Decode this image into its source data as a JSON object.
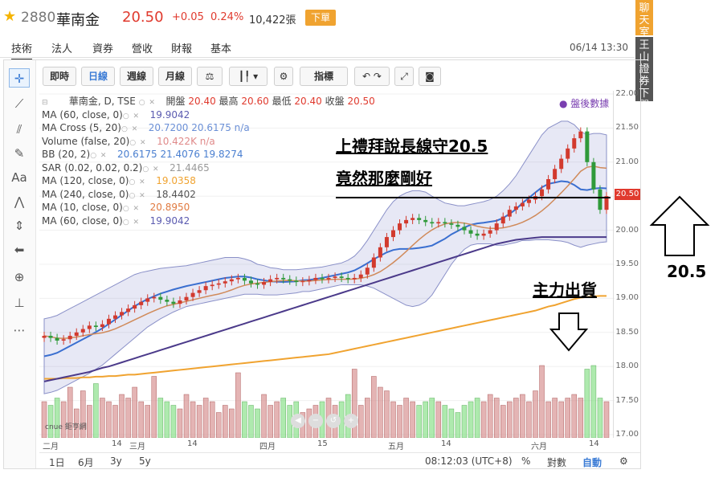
{
  "header": {
    "code": "2880",
    "name": "華南金",
    "price": "20.50",
    "change": "+0.05",
    "change_pct": "0.24%",
    "volume": "10,422張",
    "sell_button": "下單"
  },
  "tabs": [
    {
      "label": "技術",
      "active": true
    },
    {
      "label": "法人"
    },
    {
      "label": "資券"
    },
    {
      "label": "營收"
    },
    {
      "label": "財報"
    },
    {
      "label": "基本"
    }
  ],
  "datetime": "06/14 13:30",
  "side_chat": "聊天室",
  "side_broker": "王山證券下單",
  "toolbar": {
    "buttons": [
      "即時",
      "日線",
      "週線",
      "月線"
    ],
    "indicator": "指標",
    "active": "日線"
  },
  "legend": {
    "title": "華南金, D, TSE",
    "open_label": "開盤",
    "open": "20.40",
    "high_label": "最高",
    "high": "20.60",
    "low_label": "最低",
    "low": "20.40",
    "close_label": "收盤",
    "close": "20.50",
    "after_hours": "盤後數據",
    "rows": [
      {
        "name": "MA (60, close, 0)",
        "value": "19.9042",
        "color": "#5b5bb0"
      },
      {
        "name": "MA Cross (5, 20)",
        "value": "20.7200  20.6175  n/a",
        "color": "#6a8fd6"
      },
      {
        "name": "Volume (false, 20)",
        "value": "10.422K  n/a",
        "color": "#e08a8a"
      },
      {
        "name": "BB (20, 2)",
        "value": "20.6175  21.4076  19.8274",
        "color": "#4a7fd0"
      },
      {
        "name": "SAR (0.02, 0.02, 0.2)",
        "value": "21.4465",
        "color": "#999999"
      },
      {
        "name": "MA (120, close, 0)",
        "value": "19.0358",
        "color": "#f0a330"
      },
      {
        "name": "MA (240, close, 0)",
        "value": "18.4402",
        "color": "#555555"
      },
      {
        "name": "MA (10, close, 0)",
        "value": "20.8950",
        "color": "#e07a40"
      },
      {
        "name": "MA (60, close, 0)",
        "value": "19.9042",
        "color": "#5b5bb0"
      }
    ]
  },
  "annotations": {
    "line1": "上禮拜說長線守20.5",
    "line2": "竟然那麼剛好",
    "main_force": "主力出貨",
    "support": "20.5"
  },
  "price_tag": "20.50",
  "logo_text": "cnue 鉅亨網",
  "bottom": {
    "ranges": [
      "1日",
      "6月",
      "3y",
      "5y"
    ],
    "clock": "08:12:03 (UTC+8)",
    "pct": "%",
    "log": "對數",
    "auto": "自動"
  },
  "chart_data": {
    "type": "candlestick",
    "ylim": [
      17.0,
      22.0
    ],
    "y_ticks": [
      "22.00",
      "21.50",
      "21.00",
      "20.50",
      "20.00",
      "19.50",
      "19.00",
      "18.50",
      "18.00",
      "17.50",
      "17.00"
    ],
    "x_ticks": [
      "二月",
      "14",
      "三月",
      "14",
      "四月",
      "15",
      "五月",
      "14",
      "六月",
      "14"
    ],
    "close_series": [
      18.45,
      18.42,
      18.38,
      18.4,
      18.45,
      18.5,
      18.55,
      18.6,
      18.58,
      18.62,
      18.7,
      18.75,
      18.8,
      18.85,
      18.9,
      18.95,
      19.0,
      19.02,
      18.98,
      18.95,
      18.92,
      18.97,
      19.02,
      19.08,
      19.12,
      19.18,
      19.2,
      19.22,
      19.25,
      19.28,
      19.3,
      19.26,
      19.22,
      19.2,
      19.24,
      19.28,
      19.3,
      19.28,
      19.26,
      19.24,
      19.25,
      19.27,
      19.3,
      19.28,
      19.3,
      19.32,
      19.3,
      19.28,
      19.3,
      19.35,
      19.45,
      19.6,
      19.75,
      19.9,
      20.0,
      20.1,
      20.15,
      20.18,
      20.15,
      20.12,
      20.1,
      20.12,
      20.1,
      20.08,
      20.05,
      20.0,
      19.95,
      19.92,
      19.95,
      20.0,
      20.1,
      20.2,
      20.3,
      20.35,
      20.4,
      20.45,
      20.5,
      20.6,
      20.75,
      20.9,
      21.05,
      21.2,
      21.35,
      21.45,
      21.0,
      20.6,
      20.3,
      20.5
    ],
    "bb_upper": [
      18.7,
      18.72,
      18.75,
      18.8,
      18.85,
      18.9,
      18.95,
      19.0,
      19.05,
      19.1,
      19.15,
      19.2,
      19.25,
      19.3,
      19.35,
      19.38,
      19.4,
      19.42,
      19.44,
      19.45,
      19.46,
      19.47,
      19.48,
      19.5,
      19.52,
      19.54,
      19.56,
      19.58,
      19.6,
      19.6,
      19.6,
      19.58,
      19.55,
      19.5,
      19.48,
      19.45,
      19.44,
      19.42,
      19.42,
      19.42,
      19.43,
      19.44,
      19.45,
      19.46,
      19.48,
      19.5,
      19.52,
      19.56,
      19.62,
      19.72,
      19.85,
      20.0,
      20.15,
      20.3,
      20.42,
      20.5,
      20.55,
      20.58,
      20.58,
      20.56,
      20.5,
      20.45,
      20.4,
      20.38,
      20.36,
      20.36,
      20.38,
      20.4,
      20.42,
      20.45,
      20.5,
      20.58,
      20.68,
      20.8,
      20.95,
      21.1,
      21.25,
      21.4,
      21.5,
      21.55,
      21.6,
      21.6,
      21.55,
      21.45,
      21.4,
      21.42,
      21.42,
      21.4
    ],
    "bb_lower": [
      17.6,
      17.62,
      17.65,
      17.7,
      17.75,
      17.8,
      17.85,
      17.9,
      17.96,
      18.02,
      18.1,
      18.18,
      18.26,
      18.34,
      18.42,
      18.5,
      18.58,
      18.64,
      18.7,
      18.75,
      18.8,
      18.84,
      18.88,
      18.9,
      18.92,
      18.94,
      18.96,
      18.98,
      19.0,
      19.02,
      19.04,
      19.06,
      19.06,
      19.06,
      19.05,
      19.05,
      19.05,
      19.06,
      19.07,
      19.08,
      19.1,
      19.1,
      19.12,
      19.14,
      19.16,
      19.18,
      19.2,
      19.2,
      19.2,
      19.2,
      19.18,
      19.15,
      19.1,
      19.05,
      19.0,
      18.95,
      18.9,
      18.88,
      18.9,
      18.95,
      19.05,
      19.2,
      19.35,
      19.5,
      19.62,
      19.72,
      19.78,
      19.8,
      19.8,
      19.8,
      19.78,
      19.78,
      19.8,
      19.82,
      19.85,
      19.85,
      19.86,
      19.86,
      19.86,
      19.85,
      19.84,
      19.82,
      19.78,
      19.75,
      19.78,
      19.8,
      19.82,
      19.83
    ],
    "ma60_series": [
      17.78,
      17.8,
      17.82,
      17.84,
      17.86,
      17.88,
      17.9,
      17.92,
      17.95,
      17.98,
      18.0,
      18.03,
      18.06,
      18.09,
      18.12,
      18.15,
      18.18,
      18.21,
      18.24,
      18.27,
      18.3,
      18.33,
      18.36,
      18.39,
      18.42,
      18.45,
      18.48,
      18.51,
      18.54,
      18.57,
      18.6,
      18.63,
      18.66,
      18.69,
      18.72,
      18.75,
      18.78,
      18.81,
      18.84,
      18.87,
      18.9,
      18.93,
      18.96,
      18.99,
      19.02,
      19.05,
      19.08,
      19.11,
      19.14,
      19.17,
      19.2,
      19.23,
      19.26,
      19.29,
      19.32,
      19.35,
      19.38,
      19.41,
      19.44,
      19.47,
      19.5,
      19.53,
      19.56,
      19.59,
      19.62,
      19.65,
      19.68,
      19.71,
      19.74,
      19.77,
      19.8,
      19.82,
      19.84,
      19.86,
      19.87,
      19.88,
      19.89,
      19.9,
      19.9,
      19.9,
      19.9,
      19.9,
      19.9,
      19.9,
      19.9,
      19.9,
      19.9,
      19.9
    ],
    "ma120_series": [
      17.82,
      17.82,
      17.82,
      17.83,
      17.83,
      17.83,
      17.84,
      17.84,
      17.85,
      17.85,
      17.86,
      17.86,
      17.87,
      17.88,
      17.88,
      17.89,
      17.9,
      17.91,
      17.92,
      17.93,
      17.94,
      17.95,
      17.96,
      17.97,
      17.98,
      17.99,
      18.0,
      18.01,
      18.02,
      18.03,
      18.04,
      18.05,
      18.06,
      18.07,
      18.08,
      18.09,
      18.1,
      18.11,
      18.12,
      18.13,
      18.14,
      18.15,
      18.16,
      18.17,
      18.18,
      18.2,
      18.22,
      18.24,
      18.26,
      18.28,
      18.3,
      18.32,
      18.34,
      18.36,
      18.38,
      18.4,
      18.42,
      18.44,
      18.46,
      18.48,
      18.5,
      18.52,
      18.54,
      18.56,
      18.58,
      18.6,
      18.62,
      18.64,
      18.66,
      18.68,
      18.7,
      18.72,
      18.74,
      18.76,
      18.78,
      18.8,
      18.82,
      18.85,
      18.88,
      18.9,
      18.93,
      18.96,
      18.99,
      19.01,
      19.02,
      19.03,
      19.035,
      19.036
    ],
    "volume_relative": [
      0.5,
      0.45,
      0.55,
      0.5,
      0.7,
      0.4,
      0.65,
      0.45,
      0.75,
      0.55,
      0.5,
      0.45,
      0.6,
      0.55,
      0.7,
      0.5,
      0.45,
      0.85,
      0.55,
      0.5,
      0.45,
      0.4,
      0.6,
      0.5,
      0.45,
      0.55,
      0.5,
      0.35,
      0.45,
      0.4,
      0.9,
      0.5,
      0.45,
      0.4,
      0.6,
      0.45,
      0.5,
      0.55,
      0.45,
      0.5,
      0.35,
      0.4,
      0.45,
      0.5,
      0.55,
      0.45,
      0.5,
      0.6,
      0.95,
      0.45,
      0.55,
      0.85,
      0.7,
      0.65,
      0.5,
      0.45,
      0.55,
      0.5,
      0.45,
      0.5,
      0.55,
      0.5,
      0.45,
      0.4,
      0.35,
      0.45,
      0.5,
      0.55,
      0.5,
      0.6,
      0.55,
      0.45,
      0.5,
      0.55,
      0.6,
      0.5,
      0.65,
      1.0,
      0.5,
      0.55,
      0.5,
      0.55,
      0.6,
      0.55,
      0.95,
      1.0,
      0.55,
      0.5
    ]
  }
}
